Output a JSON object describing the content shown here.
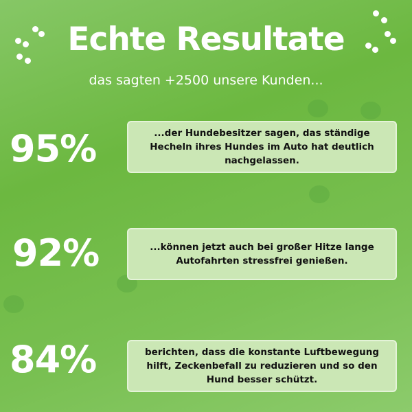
{
  "header": {
    "title": "Echte Resultate",
    "subtitle": "das sagten +2500 unsere Kunden..."
  },
  "results": [
    {
      "percent": "95%",
      "text": "...der Hundebesitzer sagen, das ständige Hecheln ihres Hundes im Auto hat deutlich nachgelassen."
    },
    {
      "percent": "92%",
      "text": "...können jetzt auch bei großer Hitze lange Autofahrten stressfrei genießen."
    },
    {
      "percent": "84%",
      "text": "berichten, dass die konstante Luftbewegung hilft, Zeckenbefall zu reduzieren und so den Hund besser schützt."
    }
  ],
  "colors": {
    "background": "#6cb840",
    "box": "#cbe7b5",
    "text": "#111111"
  },
  "icons": [
    "paw-print-icon"
  ]
}
